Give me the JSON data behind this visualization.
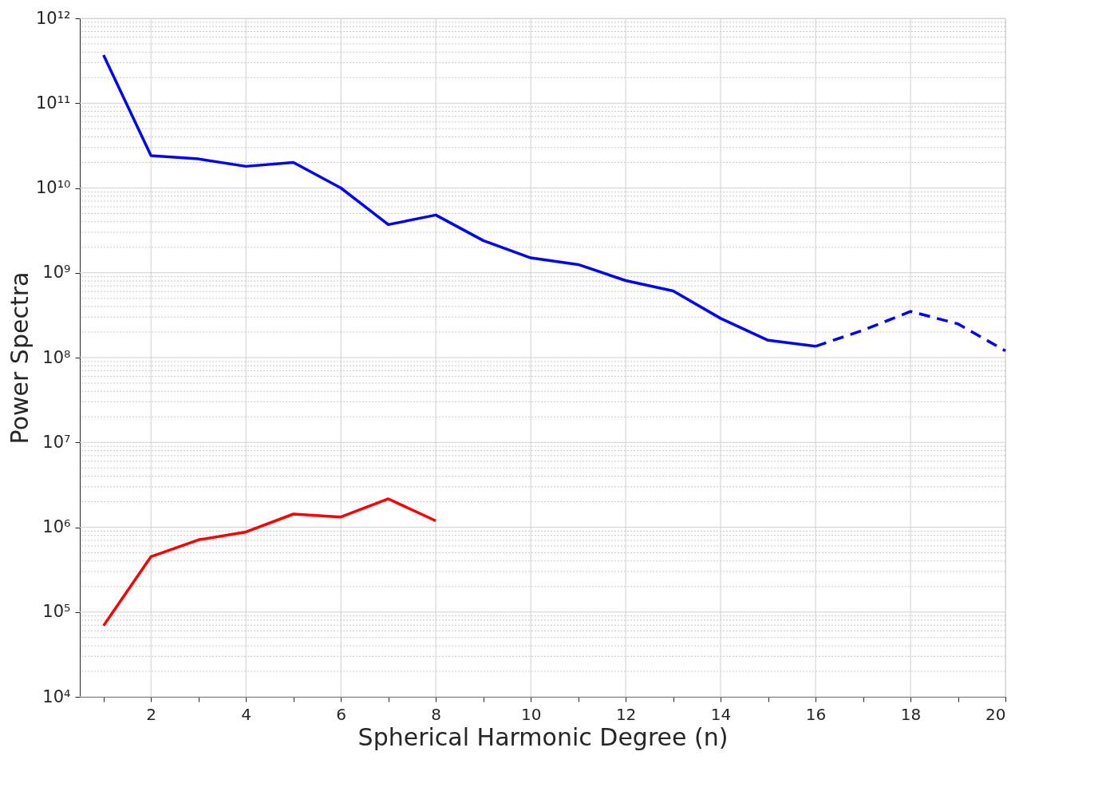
{
  "chart_data": {
    "type": "line",
    "xlabel": "Spherical Harmonic Degree (n)",
    "ylabel": "Power Spectra",
    "log": "y",
    "grid": true,
    "line_style": "solid",
    "marker": "none",
    "xlim": [
      0.5,
      20
    ],
    "ylim": [
      10000,
      1000000000000
    ],
    "xticks": [
      {
        "value": 1,
        "label": null
      },
      2,
      {
        "value": 3,
        "label": null
      },
      4,
      {
        "value": 5,
        "label": null
      },
      6,
      {
        "value": 7,
        "label": null
      },
      8,
      {
        "value": 9,
        "label": null
      },
      10,
      {
        "value": 11,
        "label": null
      },
      12,
      {
        "value": 13,
        "label": null
      },
      14,
      {
        "value": 15,
        "label": null
      },
      16,
      {
        "value": 17,
        "label": null
      },
      18,
      {
        "value": 19,
        "label": null
      },
      20
    ],
    "yticks": [
      {
        "value": 10000,
        "label": "10⁴"
      },
      {
        "value": 100000,
        "label": "10⁵"
      },
      {
        "value": 1000000,
        "label": "10⁶"
      },
      {
        "value": 10000000,
        "label": "10⁷"
      },
      {
        "value": 100000000,
        "label": "10⁸"
      },
      {
        "value": 1000000000,
        "label": "10⁹"
      },
      {
        "value": 10000000000,
        "label": "10¹⁰"
      },
      {
        "value": 100000000000,
        "label": "10¹¹"
      },
      {
        "value": 1000000000000,
        "label": "10¹²"
      }
    ],
    "series": [
      {
        "color": "#0000ff",
        "x": [
          1,
          2,
          3,
          4,
          5,
          6,
          7,
          8,
          9,
          10,
          11,
          12,
          13,
          14,
          15,
          16
        ],
        "values": [
          370000000000,
          24000000000,
          22000000000,
          18000000000,
          20000000000,
          10000000000,
          3700000000,
          4800000000,
          2400000000,
          1500000000,
          1250000000,
          810000000,
          610000000,
          290000000,
          160000000,
          136000000
        ]
      },
      {
        "color": "#0000ff",
        "line_style": "dashed",
        "x": [
          16,
          17,
          18,
          19,
          20
        ],
        "values": [
          136000000,
          210000000,
          350000000,
          250000000,
          120000000
        ]
      },
      {
        "color": "#ff0000",
        "x": [
          1,
          2,
          3,
          4,
          5,
          6,
          7,
          8
        ],
        "values": [
          69000,
          450000,
          710000,
          880000,
          1430000,
          1320000,
          2160000,
          1190000
        ]
      }
    ]
  }
}
